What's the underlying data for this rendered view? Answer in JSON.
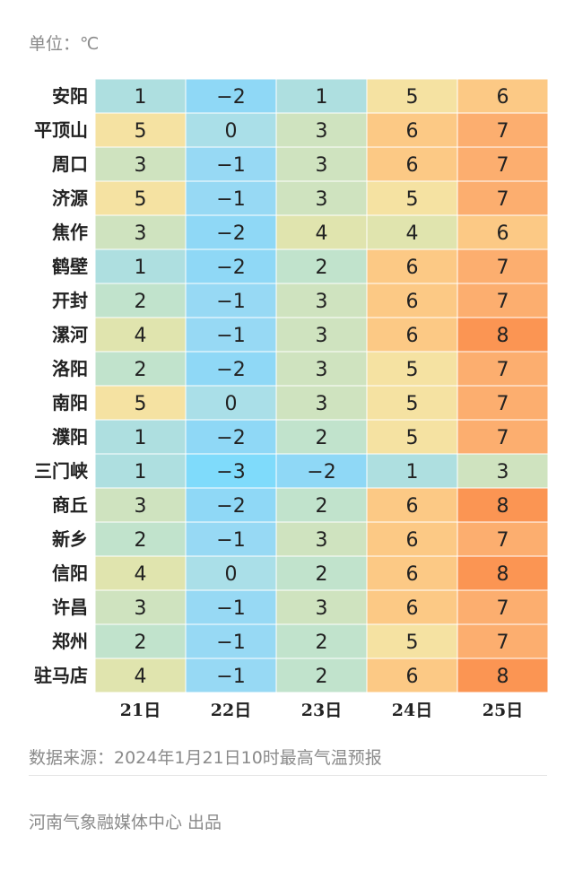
{
  "unit_label": "单位：℃",
  "source_label": "数据来源：2024年1月21日10时最高气温预报",
  "credit_label": "河南气象融媒体中心 出品",
  "chart_data": {
    "type": "heatmap",
    "title": "",
    "xlabel": "",
    "ylabel": "",
    "unit": "℃",
    "columns": [
      "21日",
      "22日",
      "23日",
      "24日",
      "25日"
    ],
    "rows": [
      "安阳",
      "平顶山",
      "周口",
      "济源",
      "焦作",
      "鹤壁",
      "开封",
      "漯河",
      "洛阳",
      "南阳",
      "濮阳",
      "三门峡",
      "商丘",
      "新乡",
      "信阳",
      "许昌",
      "郑州",
      "驻马店"
    ],
    "values": [
      [
        1,
        -2,
        1,
        5,
        6
      ],
      [
        5,
        0,
        3,
        6,
        7
      ],
      [
        3,
        -1,
        3,
        6,
        7
      ],
      [
        5,
        -1,
        3,
        5,
        7
      ],
      [
        3,
        -2,
        4,
        4,
        6
      ],
      [
        1,
        -2,
        2,
        6,
        7
      ],
      [
        2,
        -1,
        3,
        6,
        7
      ],
      [
        4,
        -1,
        3,
        6,
        8
      ],
      [
        2,
        -2,
        3,
        5,
        7
      ],
      [
        5,
        0,
        3,
        5,
        7
      ],
      [
        1,
        -2,
        2,
        5,
        7
      ],
      [
        1,
        -3,
        -2,
        1,
        3
      ],
      [
        3,
        -2,
        2,
        6,
        8
      ],
      [
        2,
        -1,
        3,
        6,
        7
      ],
      [
        4,
        0,
        2,
        6,
        8
      ],
      [
        3,
        -1,
        3,
        6,
        7
      ],
      [
        2,
        -1,
        2,
        5,
        7
      ],
      [
        4,
        -1,
        2,
        6,
        8
      ]
    ],
    "color_scale": {
      "-3": "#7fdbfb",
      "-2": "#8fd8f6",
      "-1": "#97d9f4",
      "0": "#aadfe8",
      "1": "#aedfe0",
      "2": "#c1e3cc",
      "3": "#cfe3bf",
      "4": "#e0e4ae",
      "5": "#f5e2a2",
      "6": "#fcc985",
      "7": "#fcae6f",
      "8": "#fb9553"
    }
  }
}
